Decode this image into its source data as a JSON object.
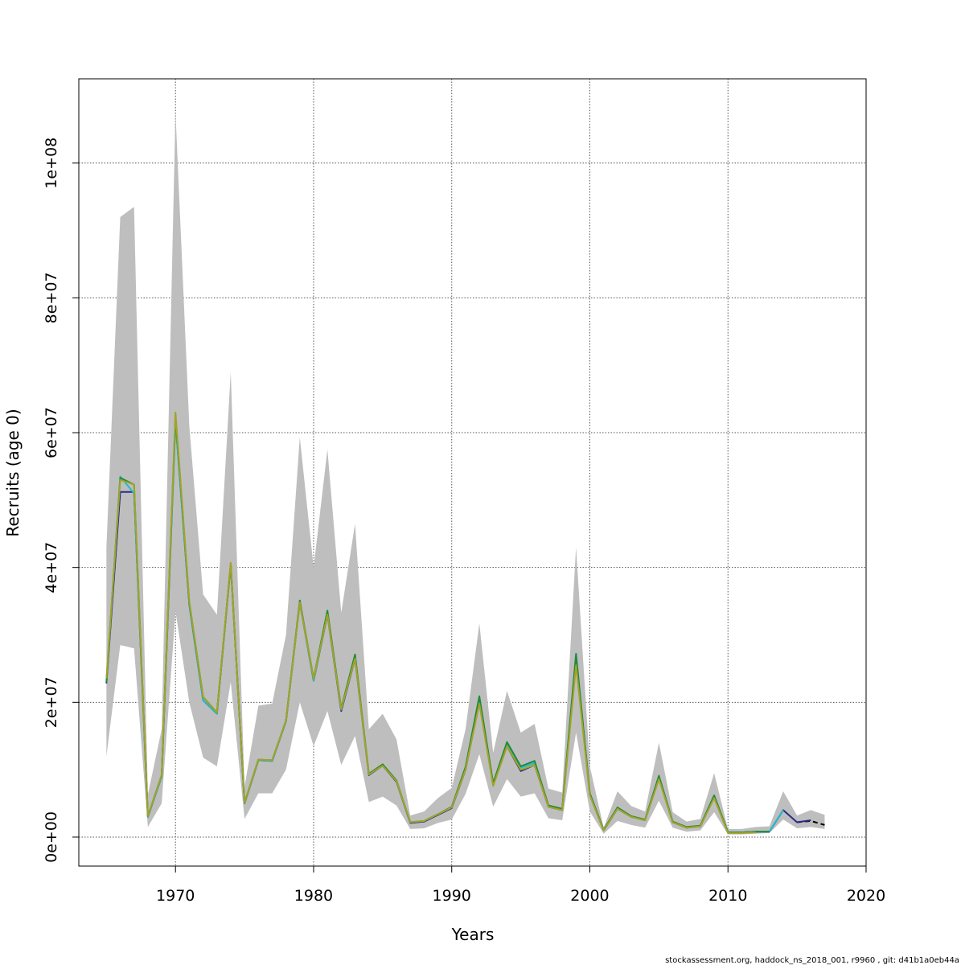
{
  "chart_data": {
    "type": "line",
    "title": "",
    "xlabel": "Years",
    "ylabel": "Recruits (age 0)",
    "xlim": [
      1963,
      2020
    ],
    "ylim": [
      -4300000,
      112500000
    ],
    "x_ticks": [
      1970,
      1980,
      1990,
      2000,
      2010,
      2020
    ],
    "x_tick_labels": [
      "1970",
      "1980",
      "1990",
      "2000",
      "2010",
      "2020"
    ],
    "y_ticks": [
      0,
      20000000,
      40000000,
      60000000,
      80000000,
      100000000
    ],
    "y_tick_labels": [
      "0e+00",
      "2e+07",
      "4e+07",
      "6e+07",
      "8e+07",
      "1e+08"
    ],
    "grid": true,
    "confidence_band": {
      "x": [
        1965,
        1966,
        1967,
        1968,
        1969,
        1970,
        1971,
        1972,
        1973,
        1974,
        1975,
        1976,
        1977,
        1978,
        1979,
        1980,
        1981,
        1982,
        1983,
        1984,
        1985,
        1986,
        1987,
        1988,
        1989,
        1990,
        1991,
        1992,
        1993,
        1994,
        1995,
        1996,
        1997,
        1998,
        1999,
        2000,
        2001,
        2002,
        2003,
        2004,
        2005,
        2006,
        2007,
        2008,
        2009,
        2010,
        2011,
        2012,
        2013,
        2014,
        2015,
        2016,
        2017
      ],
      "upper": [
        43000000,
        92000000,
        93500000,
        6300000,
        16000000,
        107500000,
        61000000,
        36000000,
        33000000,
        69000000,
        7500000,
        19500000,
        19800000,
        30000000,
        59300000,
        40000000,
        57500000,
        33300000,
        46500000,
        16000000,
        18300000,
        14500000,
        3200000,
        3800000,
        5800000,
        7300000,
        16000000,
        31700000,
        12500000,
        21700000,
        15500000,
        16800000,
        7200000,
        6600000,
        43000000,
        10500000,
        1400000,
        6800000,
        4600000,
        3800000,
        14000000,
        3700000,
        2300000,
        2700000,
        9500000,
        1200000,
        1200000,
        1500000,
        1600000,
        6800000,
        3200000,
        4000000,
        3300000
      ],
      "lower": [
        12000000,
        28500000,
        28000000,
        1500000,
        5000000,
        33500000,
        20000000,
        11800000,
        10500000,
        23000000,
        2700000,
        6500000,
        6500000,
        10000000,
        20000000,
        13500000,
        18700000,
        10700000,
        15000000,
        5200000,
        6000000,
        4700000,
        1200000,
        1300000,
        2100000,
        2600000,
        6400000,
        12300000,
        4500000,
        8600000,
        6000000,
        6500000,
        2800000,
        2500000,
        15500000,
        3800000,
        500000,
        2400000,
        1800000,
        1400000,
        5400000,
        1400000,
        800000,
        1000000,
        3700000,
        400000,
        400000,
        500000,
        600000,
        2600000,
        1300000,
        1500000,
        1200000
      ]
    },
    "x": [
      1965,
      1966,
      1967,
      1968,
      1969,
      1970,
      1971,
      1972,
      1973,
      1974,
      1975,
      1976,
      1977,
      1978,
      1979,
      1980,
      1981,
      1982,
      1983,
      1984,
      1985,
      1986,
      1987,
      1988,
      1989,
      1990,
      1991,
      1992,
      1993,
      1994,
      1995,
      1996,
      1997,
      1998,
      1999,
      2000,
      2001,
      2002,
      2003,
      2004,
      2005,
      2006,
      2007,
      2008,
      2009,
      2010,
      2011,
      2012,
      2013,
      2014,
      2015,
      2016,
      2017
    ],
    "series": [
      {
        "color": "#000000",
        "dashed": true,
        "x": [
          2015,
          2016,
          2017
        ],
        "values": [
          2200000,
          2400000,
          1800000
        ]
      },
      {
        "color": "#2a2a8a",
        "x": [
          1965,
          1966,
          1967,
          1968,
          1969,
          1970,
          1971,
          1972,
          1973,
          1974,
          1975,
          1976,
          1977,
          1978,
          1979,
          1980,
          1981,
          1982,
          1983,
          1984,
          1985,
          1986,
          1987,
          1988,
          1989,
          1990,
          1991,
          1992,
          1993,
          1994,
          1995,
          1996,
          1997,
          1998,
          1999,
          2000,
          2001,
          2002,
          2003,
          2004,
          2005,
          2006,
          2007,
          2008,
          2009,
          2010,
          2011,
          2012,
          2013,
          2014,
          2015,
          2016
        ],
        "values": [
          22800000,
          51200000,
          51200000,
          3000000,
          9000000,
          62000000,
          34500000,
          20300000,
          18300000,
          40500000,
          5000000,
          11400000,
          11300000,
          17200000,
          34800000,
          23200000,
          33000000,
          18700000,
          26500000,
          9200000,
          10600000,
          8200000,
          2100000,
          2300000,
          3300000,
          4300000,
          10000000,
          20200000,
          7700000,
          13500000,
          9800000,
          10700000,
          4500000,
          4000000,
          26500000,
          6300000,
          1000000,
          4200000,
          3000000,
          2500000,
          8800000,
          2200000,
          1400000,
          1600000,
          6000000,
          700000,
          700000,
          800000,
          800000,
          4000000,
          2200000,
          2500000
        ]
      },
      {
        "color": "#22bbcc",
        "x": [
          1965,
          1966,
          1967,
          1968,
          1969,
          1970,
          1971,
          1972,
          1973,
          1974,
          1975,
          1976,
          1977,
          1978,
          1979,
          1980,
          1981,
          1982,
          1983,
          1984,
          1985,
          1986,
          1987,
          1988,
          1989,
          1990,
          1991,
          1992,
          1993,
          1994,
          1995,
          1996,
          1997,
          1998,
          1999,
          2000,
          2001,
          2002,
          2003,
          2004,
          2005,
          2006,
          2007,
          2008,
          2009,
          2010,
          2011,
          2012,
          2013,
          2014
        ],
        "values": [
          23000000,
          53500000,
          51000000,
          3000000,
          9000000,
          61500000,
          34500000,
          20300000,
          18300000,
          40500000,
          5000000,
          11400000,
          11300000,
          17200000,
          34800000,
          23200000,
          33300000,
          18900000,
          26700000,
          9300000,
          10700000,
          8300000,
          2200000,
          2400000,
          3400000,
          4400000,
          10200000,
          20300000,
          7800000,
          13800000,
          10300000,
          11000000,
          4600000,
          4100000,
          26800000,
          6400000,
          1000000,
          4300000,
          3000000,
          2500000,
          8900000,
          2300000,
          1400000,
          1600000,
          6100000,
          700000,
          700000,
          800000,
          800000,
          4000000
        ]
      },
      {
        "color": "#1f8a3a",
        "x": [
          1965,
          1966,
          1967,
          1968,
          1969,
          1970,
          1971,
          1972,
          1973,
          1974,
          1975,
          1976,
          1977,
          1978,
          1979,
          1980,
          1981,
          1982,
          1983,
          1984,
          1985,
          1986,
          1987,
          1988,
          1989,
          1990,
          1991,
          1992,
          1993,
          1994,
          1995,
          1996,
          1997,
          1998,
          1999,
          2000,
          2001,
          2002,
          2003,
          2004,
          2005,
          2006,
          2007,
          2008,
          2009,
          2010,
          2011,
          2012,
          2013
        ],
        "values": [
          23000000,
          53300000,
          52300000,
          3100000,
          9200000,
          62500000,
          34800000,
          20800000,
          18500000,
          40500000,
          5100000,
          11500000,
          11400000,
          17300000,
          35100000,
          23500000,
          33600000,
          19100000,
          27100000,
          9400000,
          10800000,
          8400000,
          2200000,
          2400000,
          3400000,
          4500000,
          10400000,
          20900000,
          8000000,
          14100000,
          10500000,
          11300000,
          4700000,
          4200000,
          27200000,
          6500000,
          1100000,
          4400000,
          3100000,
          2600000,
          9100000,
          2300000,
          1500000,
          1700000,
          6200000,
          700000,
          700000,
          800000,
          800000
        ]
      },
      {
        "color": "#a3a326",
        "x": [
          1965,
          1966,
          1967,
          1968,
          1969,
          1970,
          1971,
          1972,
          1973,
          1974,
          1975,
          1976,
          1977,
          1978,
          1979,
          1980,
          1981,
          1982,
          1983,
          1984,
          1985,
          1986,
          1987,
          1988,
          1989,
          1990,
          1991,
          1992,
          1993,
          1994,
          1995,
          1996,
          1997,
          1998,
          1999,
          2000,
          2001,
          2002,
          2003,
          2004,
          2005,
          2006,
          2007,
          2008,
          2009,
          2010,
          2011,
          2012
        ],
        "values": [
          23500000,
          53000000,
          52300000,
          3100000,
          9200000,
          63000000,
          35000000,
          20800000,
          18500000,
          40700000,
          5100000,
          11500000,
          11400000,
          17300000,
          34800000,
          23500000,
          33000000,
          19000000,
          26500000,
          9300000,
          10600000,
          8300000,
          2200000,
          2400000,
          3400000,
          4400000,
          10000000,
          19800000,
          7600000,
          13500000,
          10000000,
          10700000,
          4500000,
          4000000,
          25500000,
          6200000,
          1000000,
          4200000,
          3000000,
          2500000,
          8600000,
          2200000,
          1400000,
          1600000,
          5800000,
          600000,
          600000,
          700000
        ]
      }
    ],
    "footer": "stockassessment.org, haddock_ns_2018_001, r9960 , git: d41b1a0eb44a"
  }
}
